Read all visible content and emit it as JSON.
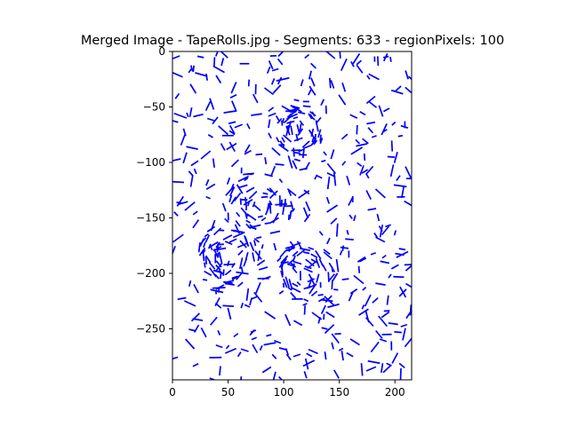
{
  "chart_data": {
    "type": "scatter",
    "title": "Merged Image - TapeRolls.jpg - Segments: 633 - regionPixels: 100",
    "xlabel": "",
    "ylabel": "",
    "xlim": [
      0,
      215
    ],
    "ylim": [
      -296,
      0
    ],
    "x_ticks": [
      0,
      50,
      100,
      150,
      200
    ],
    "y_ticks": [
      0,
      -50,
      -100,
      -150,
      -200,
      -250
    ],
    "x_tick_labels": [
      "0",
      "50",
      "100",
      "150",
      "200"
    ],
    "y_tick_labels": [
      "0",
      "−50",
      "−100",
      "−150",
      "−200",
      "−250"
    ],
    "grid": false,
    "legend": "none",
    "segment_count": 633,
    "segment_color": "#0000ff",
    "segment_length_range": [
      4,
      12
    ],
    "dense_regions": [
      {
        "cx": 110,
        "cy": -70,
        "r": 28
      },
      {
        "cx": 78,
        "cy": -138,
        "r": 30
      },
      {
        "cx": 50,
        "cy": -185,
        "r": 30
      },
      {
        "cx": 120,
        "cy": -200,
        "r": 28
      }
    ],
    "series": []
  }
}
